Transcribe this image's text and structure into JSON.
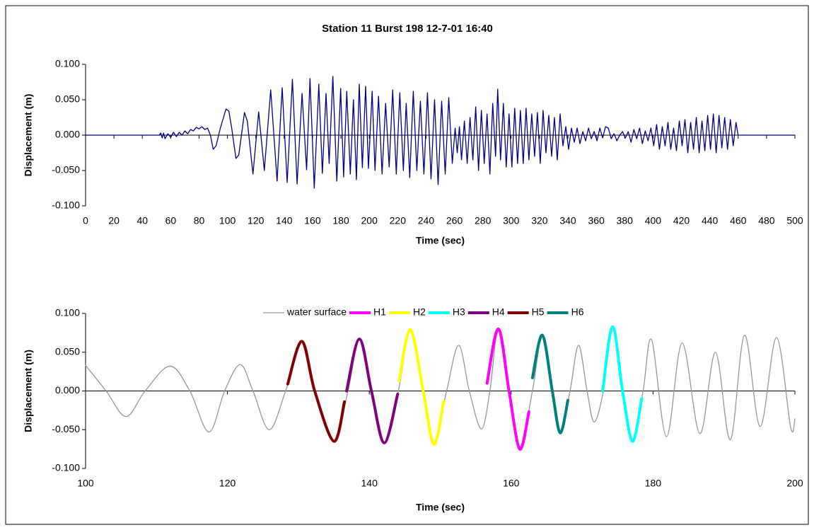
{
  "chart_data": [
    {
      "type": "line",
      "title": "Station 11 Burst 198 12-7-01 16:40",
      "x_label": "Time (sec)",
      "y_label": "Displacement (m)",
      "xlim": [
        0,
        500
      ],
      "xticks": [
        0,
        20,
        40,
        60,
        80,
        100,
        120,
        140,
        160,
        180,
        200,
        220,
        240,
        260,
        280,
        300,
        320,
        340,
        360,
        380,
        400,
        420,
        440,
        460,
        480,
        500
      ],
      "ylim": [
        -0.1,
        0.1
      ],
      "yticks": [
        {
          "value": -0.1,
          "label": "-0.100"
        },
        {
          "value": -0.05,
          "label": "-0.050"
        },
        {
          "value": 0,
          "label": "0.000"
        },
        {
          "value": 0.05,
          "label": "0.050"
        },
        {
          "value": 0.1,
          "label": "0.100"
        }
      ],
      "series": [
        {
          "color": "#000080",
          "x": [
            0,
            52,
            53,
            54,
            55,
            56,
            58,
            60,
            62,
            64,
            66,
            68,
            70,
            72,
            74,
            76,
            78,
            80,
            82,
            84,
            86,
            88,
            90,
            92,
            95,
            99,
            101,
            103,
            106,
            108,
            112,
            114,
            118,
            122,
            126,
            130.5,
            135,
            138.6,
            142.1,
            145.8,
            149.1,
            152.6,
            155.8,
            158.2,
            161.2,
            164.4,
            166.9,
            169.5,
            171.7,
            174.3,
            177.1,
            179.8,
            181.9,
            184.1,
            186.6,
            188.8,
            190.9,
            192.9,
            195.1,
            197.4,
            199.4,
            202,
            204,
            206.5,
            209,
            211.5,
            214,
            216.5,
            219,
            221.5,
            224,
            226,
            228.5,
            231,
            233.5,
            236,
            238.5,
            241,
            243.5,
            246,
            248.5,
            251,
            253.5,
            256,
            258.5,
            260.5,
            262,
            263.5,
            265,
            267,
            269,
            271,
            273,
            275,
            277,
            279,
            281,
            283,
            285,
            287,
            289,
            290.5,
            292.5,
            294.5,
            296.5,
            298.5,
            300.5,
            302.5,
            304.5,
            306.5,
            308.5,
            310.5,
            312.5,
            314.5,
            316.5,
            318.5,
            320.5,
            322.5,
            324.5,
            326.5,
            328.5,
            330.5,
            332.5,
            334.5,
            336.5,
            338.5,
            340.5,
            342.5,
            344.5,
            346.5,
            348.5,
            350.5,
            352.5,
            354.5,
            356.5,
            358.5,
            360.5,
            362.5,
            364.5,
            366.5,
            368.5,
            370.5,
            372.5,
            374.5,
            376.5,
            378.5,
            380.5,
            382.5,
            384.5,
            386.5,
            388.5,
            390.5,
            392.5,
            394.5,
            396.5,
            398.5,
            400.5,
            402.5,
            404.5,
            406.5,
            408.5,
            410.5,
            412.5,
            414.5,
            416.5,
            418.5,
            420.5,
            422.5,
            424.5,
            426.5,
            428.5,
            430.5,
            432.5,
            434.5,
            436.5,
            438.5,
            440.5,
            442.5,
            444.5,
            446.5,
            448.5,
            450.5,
            452.5,
            454.5,
            456.5,
            458.5,
            459.5,
            460,
            500
          ],
          "values": [
            0,
            0,
            0.003,
            -0.004,
            0.003,
            -0.005,
            0.002,
            -0.003,
            0.004,
            -0.002,
            0.004,
            0,
            0.006,
            0.002,
            0.008,
            0.006,
            0.011,
            0.009,
            0.012,
            0.008,
            0.01,
            0,
            -0.02,
            -0.015,
            0.01,
            0.037,
            0.034,
            0.01,
            -0.033,
            -0.028,
            0.032,
            0.02,
            -0.055,
            0.033,
            -0.05,
            0.064,
            -0.065,
            0.067,
            -0.067,
            0.079,
            -0.069,
            0.059,
            -0.049,
            0.08,
            -0.075,
            0.072,
            -0.054,
            0.059,
            -0.04,
            0.083,
            -0.065,
            0.066,
            -0.059,
            0.062,
            -0.055,
            0.05,
            -0.063,
            0.072,
            -0.046,
            0.069,
            -0.047,
            0.062,
            -0.05,
            0.055,
            -0.055,
            0.045,
            -0.045,
            0.064,
            -0.055,
            0.06,
            -0.05,
            0.045,
            -0.06,
            0.062,
            -0.05,
            0.048,
            -0.055,
            0.06,
            -0.062,
            0.05,
            -0.07,
            0.048,
            -0.055,
            0.053,
            -0.04,
            0.01,
            -0.025,
            0.012,
            -0.035,
            0.02,
            -0.04,
            0.025,
            -0.035,
            0.04,
            -0.05,
            0.035,
            -0.04,
            0.03,
            -0.055,
            0.045,
            -0.03,
            0.065,
            -0.035,
            0.045,
            -0.045,
            0.03,
            -0.045,
            0.038,
            -0.04,
            0.035,
            -0.04,
            0.038,
            -0.035,
            0.03,
            -0.03,
            0.032,
            -0.04,
            0.035,
            -0.025,
            0.028,
            -0.03,
            0.025,
            -0.035,
            0.03,
            -0.015,
            0.012,
            -0.02,
            0.01,
            -0.01,
            0.01,
            -0.012,
            0.005,
            -0.008,
            0.01,
            -0.005,
            0.005,
            -0.008,
            0.01,
            -0.004,
            0.012,
            0.01,
            -0.005,
            0.002,
            -0.008,
            0,
            0.005,
            -0.004,
            0.005,
            -0.01,
            0.008,
            -0.005,
            0.01,
            -0.012,
            0.006,
            -0.008,
            0.01,
            -0.015,
            0.015,
            -0.02,
            0.012,
            -0.015,
            0.018,
            -0.02,
            0.01,
            -0.022,
            0.02,
            -0.015,
            0.022,
            -0.025,
            0.018,
            -0.02,
            0.025,
            -0.025,
            0.02,
            -0.022,
            0.028,
            -0.02,
            0.03,
            -0.025,
            0.028,
            -0.018,
            0.025,
            -0.02,
            0.022,
            -0.015,
            0.018,
            0.005,
            0,
            0
          ]
        }
      ]
    },
    {
      "type": "line",
      "smooth": true,
      "x_label": "Time (sec)",
      "y_label": "Displacement (m)",
      "xlim": [
        100,
        200
      ],
      "xticks": [
        100,
        120,
        140,
        160,
        180,
        200
      ],
      "ylim": [
        -0.1,
        0.1
      ],
      "yticks": [
        {
          "value": -0.1,
          "label": "-0.100"
        },
        {
          "value": -0.05,
          "label": "-0.050"
        },
        {
          "value": 0,
          "label": "0.000"
        },
        {
          "value": 0.05,
          "label": "0.050"
        },
        {
          "value": 0.1,
          "label": "0.100"
        }
      ],
      "legend": "top",
      "series": [
        {
          "name": "water surface",
          "color": "#969696",
          "width": 1.3,
          "x": [
            100,
            102.9,
            105.7,
            108.4,
            111.9,
            114.7,
            117.4,
            119.6,
            121.8,
            123.6,
            125.9,
            128.2,
            130.5,
            132.3,
            135,
            137,
            138.6,
            140.3,
            142.1,
            144.1,
            145.8,
            147.6,
            149.1,
            150.9,
            152.6,
            154.1,
            155.8,
            157,
            158.2,
            159.7,
            161.2,
            163,
            164.4,
            165.8,
            166.9,
            168.3,
            169.5,
            170.7,
            171.7,
            173,
            174.3,
            175.7,
            177.1,
            178.6,
            179.8,
            181.9,
            184.1,
            186.6,
            188.8,
            190.9,
            192.9,
            195.1,
            197.4,
            199.4,
            200
          ],
          "values": [
            0.033,
            0,
            -0.033,
            0,
            0.032,
            0,
            -0.053,
            0,
            0.034,
            0,
            -0.05,
            0,
            0.064,
            0,
            -0.065,
            0,
            0.067,
            0,
            -0.067,
            0,
            0.079,
            0,
            -0.069,
            0,
            0.059,
            0,
            -0.049,
            0,
            0.08,
            0,
            -0.075,
            0,
            0.072,
            0,
            -0.054,
            0,
            0.059,
            0,
            -0.04,
            0,
            0.083,
            0,
            -0.065,
            0,
            0.066,
            -0.059,
            0.062,
            -0.055,
            0.05,
            -0.063,
            0.072,
            -0.046,
            0.069,
            -0.047,
            -0.036
          ]
        },
        {
          "name": "H1",
          "color": "#ff00ff",
          "width": 4,
          "x": [
            156.6,
            158.2,
            159.7,
            161.2,
            162.5
          ],
          "values": [
            0.01,
            0.08,
            0,
            -0.075,
            -0.027
          ]
        },
        {
          "name": "H2",
          "color": "#ffff00",
          "width": 4,
          "x": [
            144.2,
            145.8,
            147.6,
            149.1,
            150.5
          ],
          "values": [
            0.013,
            0.079,
            0,
            -0.069,
            -0.013
          ]
        },
        {
          "name": "H3",
          "color": "#00ffff",
          "width": 4,
          "x": [
            172.9,
            174.3,
            175.7,
            177.1,
            178.4
          ],
          "values": [
            0,
            0.083,
            0,
            -0.065,
            -0.01
          ]
        },
        {
          "name": "H4",
          "color": "#800080",
          "width": 4,
          "x": [
            136.8,
            138.6,
            140.3,
            142.1,
            144
          ],
          "values": [
            0,
            0.067,
            0,
            -0.067,
            -0.004
          ]
        },
        {
          "name": "H5",
          "color": "#800000",
          "width": 4,
          "x": [
            128.5,
            130.5,
            132.3,
            135,
            136.5
          ],
          "values": [
            0.009,
            0.064,
            0,
            -0.065,
            -0.014
          ]
        },
        {
          "name": "H6",
          "color": "#008080",
          "width": 4,
          "x": [
            163,
            164.4,
            165.8,
            166.9,
            168
          ],
          "values": [
            0.017,
            0.072,
            0,
            -0.054,
            -0.012
          ]
        }
      ]
    }
  ]
}
